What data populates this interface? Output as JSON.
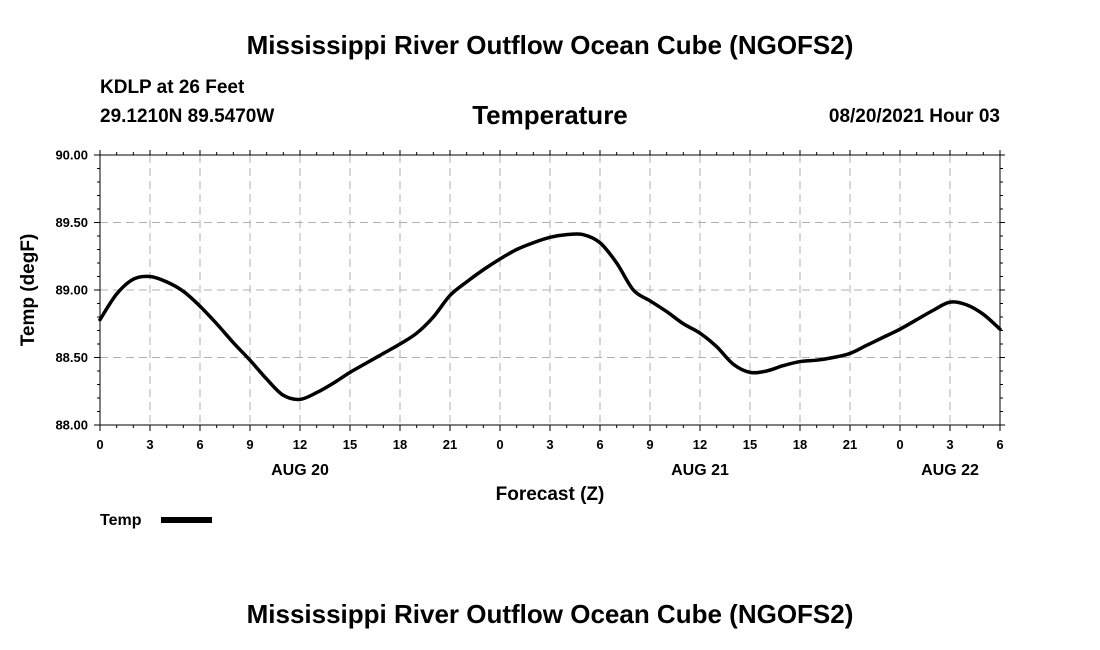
{
  "header": {
    "title": "Mississippi River Outflow Ocean Cube (NGOFS2)",
    "station": "KDLP at 26 Feet",
    "coordinates": "29.1210N  89.5470W",
    "variable": "Temperature",
    "datetime": "08/20/2021 Hour 03"
  },
  "footer": {
    "title": "Mississippi River Outflow Ocean Cube (NGOFS2)"
  },
  "chart_data": {
    "type": "line",
    "title": "Temperature",
    "xlabel": "Forecast (Z)",
    "ylabel": "Temp (degF)",
    "xlim": [
      0,
      54
    ],
    "ylim": [
      88.0,
      90.0
    ],
    "grid": true,
    "y_ticks": [
      {
        "value": 88.0,
        "label": "88.00"
      },
      {
        "value": 88.5,
        "label": "88.50"
      },
      {
        "value": 89.0,
        "label": "89.00"
      },
      {
        "value": 89.5,
        "label": "89.50"
      },
      {
        "value": 90.0,
        "label": "90.00"
      }
    ],
    "x_ticks": [
      {
        "value": 0,
        "label": "0"
      },
      {
        "value": 3,
        "label": "3"
      },
      {
        "value": 6,
        "label": "6"
      },
      {
        "value": 9,
        "label": "9"
      },
      {
        "value": 12,
        "label": "12"
      },
      {
        "value": 15,
        "label": "15"
      },
      {
        "value": 18,
        "label": "18"
      },
      {
        "value": 21,
        "label": "21"
      },
      {
        "value": 24,
        "label": "0"
      },
      {
        "value": 27,
        "label": "3"
      },
      {
        "value": 30,
        "label": "6"
      },
      {
        "value": 33,
        "label": "9"
      },
      {
        "value": 36,
        "label": "12"
      },
      {
        "value": 39,
        "label": "15"
      },
      {
        "value": 42,
        "label": "18"
      },
      {
        "value": 45,
        "label": "21"
      },
      {
        "value": 48,
        "label": "0"
      },
      {
        "value": 51,
        "label": "3"
      },
      {
        "value": 54,
        "label": "6"
      }
    ],
    "day_labels": [
      {
        "value": 12,
        "label": "AUG 20"
      },
      {
        "value": 36,
        "label": "AUG 21"
      },
      {
        "value": 51,
        "label": "AUG 22"
      }
    ],
    "legend": {
      "position": "bottom-left",
      "entries": [
        "Temp"
      ]
    },
    "series": [
      {
        "name": "Temp",
        "color": "#000000",
        "x": [
          0,
          1,
          2,
          3,
          4,
          5,
          6,
          7,
          8,
          9,
          10,
          11,
          12,
          13,
          14,
          15,
          16,
          17,
          18,
          19,
          20,
          21,
          22,
          23,
          24,
          25,
          26,
          27,
          28,
          29,
          30,
          31,
          32,
          33,
          34,
          35,
          36,
          37,
          38,
          39,
          40,
          41,
          42,
          43,
          44,
          45,
          46,
          47,
          48,
          49,
          50,
          51,
          52,
          53,
          54
        ],
        "values": [
          88.78,
          88.97,
          89.08,
          89.1,
          89.06,
          88.99,
          88.88,
          88.75,
          88.61,
          88.48,
          88.34,
          88.22,
          88.19,
          88.24,
          88.31,
          88.39,
          88.46,
          88.53,
          88.6,
          88.68,
          88.8,
          88.96,
          89.06,
          89.15,
          89.23,
          89.3,
          89.35,
          89.39,
          89.41,
          89.41,
          89.35,
          89.2,
          89.0,
          88.92,
          88.84,
          88.75,
          88.68,
          88.58,
          88.45,
          88.39,
          88.4,
          88.44,
          88.47,
          88.48,
          88.5,
          88.53,
          88.59,
          88.65,
          88.71,
          88.78,
          88.85,
          88.91,
          88.89,
          88.82,
          88.71
        ]
      }
    ]
  }
}
